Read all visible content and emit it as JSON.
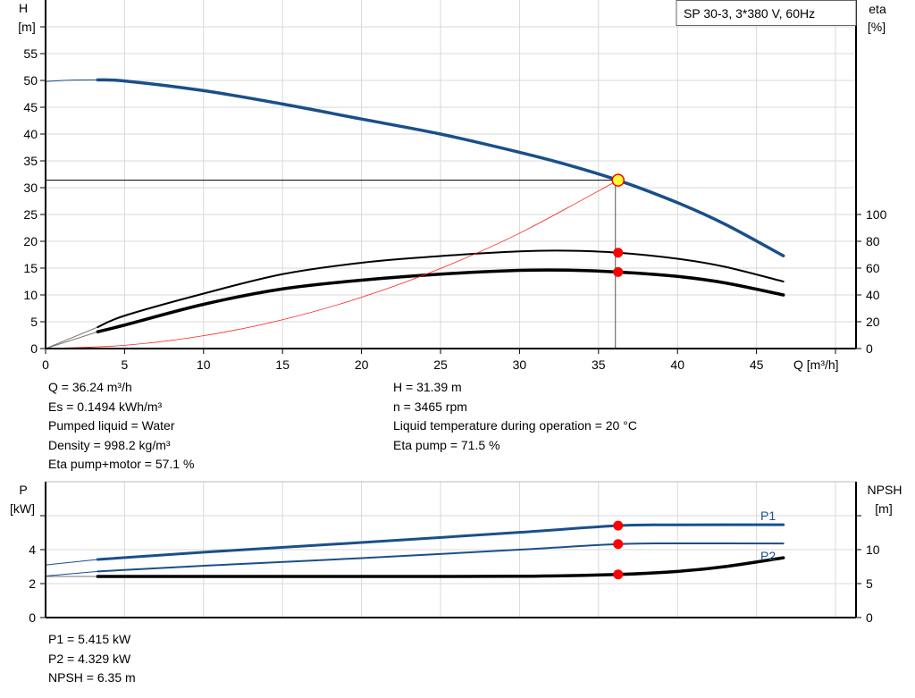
{
  "chart_data": [
    {
      "type": "line",
      "title": "SP 30-3, 3*380 V, 60Hz",
      "xlabel": "Q [m³/h]",
      "ylabel": [
        "H",
        "[m]"
      ],
      "y2label": [
        "eta",
        "[%]"
      ],
      "xlim": [
        0,
        51.3
      ],
      "ylim": [
        0,
        65
      ],
      "y2lim": [
        0,
        260
      ],
      "xticks": [
        0,
        5,
        10,
        15,
        20,
        25,
        30,
        35,
        40,
        45,
        50
      ],
      "xtick_labels": [
        "0",
        "5",
        "10",
        "15",
        "20",
        "25",
        "30",
        "35",
        "40",
        "45",
        ""
      ],
      "yticks": [
        0,
        5,
        10,
        15,
        20,
        25,
        30,
        35,
        40,
        45,
        50,
        55,
        60
      ],
      "ytick_labels": [
        "0",
        "5",
        "10",
        "15",
        "20",
        "25",
        "30",
        "35",
        "40",
        "45",
        "50",
        "55",
        ""
      ],
      "y2ticks": [
        0,
        20,
        40,
        60,
        80,
        100
      ],
      "grid": true,
      "legend": "top-right",
      "series": [
        {
          "id": "H",
          "axis": "left",
          "color": "#1a4f8a",
          "x": [
            3.3,
            5,
            10,
            15,
            20,
            25,
            30,
            33,
            36.24,
            40,
            43,
            46.7
          ],
          "y": [
            50.1,
            49.9,
            48.1,
            45.6,
            42.8,
            40.0,
            36.6,
            34.3,
            31.39,
            27.2,
            23.2,
            17.3
          ],
          "extension": {
            "x": [
              0,
              1.5,
              3.3
            ],
            "y": [
              49.8,
              50.05,
              50.1
            ]
          }
        },
        {
          "id": "eta_pump",
          "axis": "right",
          "color": "#000000",
          "x": [
            3.3,
            5,
            10,
            15,
            20,
            25,
            30,
            33,
            36.24,
            40,
            43,
            46.7
          ],
          "y": [
            16,
            24.5,
            41,
            55.5,
            64,
            69,
            72.5,
            73,
            71.5,
            67,
            61,
            50
          ],
          "extension": {
            "x": [
              0,
              3.3
            ],
            "y": [
              0,
              16
            ]
          }
        },
        {
          "id": "eta_pump_motor",
          "axis": "right",
          "color": "#000000",
          "x": [
            3.3,
            5,
            10,
            15,
            20,
            25,
            30,
            33,
            36.24,
            40,
            43,
            46.7
          ],
          "y": [
            12.5,
            17.5,
            33,
            44.5,
            51,
            55.5,
            58.3,
            58.5,
            57.1,
            53.8,
            49,
            40
          ],
          "extension": {
            "x": [
              0,
              3.3
            ],
            "y": [
              0,
              12.5
            ]
          }
        },
        {
          "id": "system_curve",
          "axis": "left",
          "color": "#ff2020",
          "x": [
            0,
            5,
            10,
            15,
            20,
            25,
            30,
            36.24
          ],
          "y": [
            0,
            0.6,
            2.39,
            5.38,
            9.56,
            14.94,
            21.51,
            31.39
          ]
        }
      ],
      "operating_point": {
        "x": 36.24,
        "H": 31.39,
        "eta_pump": 71.5,
        "eta_pump_motor": 57.1
      }
    },
    {
      "type": "line",
      "ylabel": [
        "P",
        "[kW]"
      ],
      "y2label": [
        "NPSH",
        "[m]"
      ],
      "xlim": [
        0,
        51.3
      ],
      "ylim": [
        0,
        8
      ],
      "y2lim": [
        0,
        20
      ],
      "yticks": [
        0,
        2,
        4,
        6
      ],
      "ytick_labels": [
        "0",
        "2",
        "4",
        ""
      ],
      "y2ticks": [
        0,
        5,
        10,
        15
      ],
      "y2tick_labels": [
        "0",
        "5",
        "10",
        ""
      ],
      "grid": true,
      "series": [
        {
          "id": "P1",
          "name": "P1",
          "axis": "left",
          "color": "#1a4f8a",
          "x": [
            3.3,
            10,
            20,
            30,
            36.24,
            40,
            46.7
          ],
          "y": [
            3.42,
            3.85,
            4.42,
            5.02,
            5.415,
            5.46,
            5.47
          ],
          "extension": {
            "x": [
              0,
              3.3
            ],
            "y": [
              3.1,
              3.42
            ]
          }
        },
        {
          "id": "P2",
          "name": "P2",
          "axis": "left",
          "color": "#1a4f8a",
          "x": [
            3.3,
            10,
            20,
            30,
            36.24,
            40,
            46.7
          ],
          "y": [
            2.72,
            3.05,
            3.5,
            4.0,
            4.329,
            4.37,
            4.36
          ],
          "extension": {
            "x": [
              0,
              3.3
            ],
            "y": [
              2.45,
              2.72
            ]
          }
        },
        {
          "id": "NPSH",
          "axis": "right",
          "color": "#000000",
          "x": [
            3.3,
            10,
            20,
            30,
            36.24,
            40,
            43,
            46.7
          ],
          "y": [
            6.05,
            6.05,
            6.05,
            6.08,
            6.35,
            6.8,
            7.5,
            8.8
          ],
          "extension": {
            "x": [
              0,
              3.3
            ],
            "y": [
              6.05,
              6.05
            ]
          }
        }
      ],
      "operating_point": {
        "x": 36.24,
        "P1": 5.415,
        "P2": 4.329,
        "NPSH": 6.35
      }
    }
  ],
  "info": {
    "left": [
      "Q = 36.24 m³/h",
      "Es = 0.1494 kWh/m³",
      "Pumped liquid = Water",
      "Density = 998.2 kg/m³",
      "Eta pump+motor = 57.1 %"
    ],
    "right": [
      "H = 31.39 m",
      "n = 3465 rpm",
      "Liquid temperature during operation = 20 °C",
      "Eta pump = 71.5 %"
    ]
  },
  "power_info": [
    "P1 = 5.415 kW",
    "P2 = 4.329 kW",
    "NPSH = 6.35 m"
  ],
  "colors": {
    "curve_blue": "#1a4f8a",
    "point_red": "#ff0000",
    "op_point_fill": "#ffff33",
    "grid": "#d8d8d8"
  }
}
